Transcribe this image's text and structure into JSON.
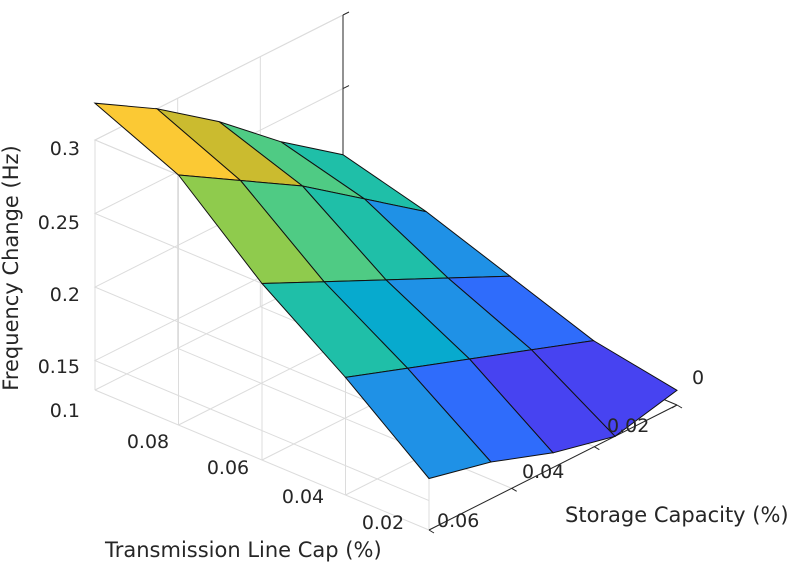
{
  "chart_data": {
    "type": "surface3d",
    "title": "",
    "xlabel": "Transmission Line Cap (%)",
    "ylabel": "Storage Capacity (%)",
    "zlabel": "Frequency Change (Hz)",
    "x_ticks": [
      "0.02",
      "0.04",
      "0.06",
      "0.08",
      "0.1"
    ],
    "y_ticks": [
      "0",
      "0.02",
      "0.04",
      "0.06"
    ],
    "z_ticks": [
      "0.15",
      "0.2",
      "0.25",
      "0.3"
    ],
    "xlim": [
      0.02,
      0.1
    ],
    "ylim": [
      0,
      0.06
    ],
    "zlim": [
      0.13,
      0.3
    ],
    "x": [
      0.1,
      0.08,
      0.06,
      0.04,
      0.02
    ],
    "y": [
      0,
      0.015,
      0.03,
      0.045,
      0.06
    ],
    "z": [
      [
        0.325,
        0.3,
        0.25,
        0.21,
        0.165
      ],
      [
        0.3,
        0.275,
        0.23,
        0.195,
        0.155
      ],
      [
        0.27,
        0.25,
        0.21,
        0.18,
        0.14
      ],
      [
        0.235,
        0.22,
        0.19,
        0.165,
        0.13
      ],
      [
        0.205,
        0.19,
        0.17,
        0.15,
        0.14
      ]
    ],
    "colormap": [
      "#3e26a8",
      "#4743f1",
      "#2f6cfb",
      "#1f91e6",
      "#07aace",
      "#1fbfa8",
      "#4fcb84",
      "#8fcb4d",
      "#cbbb2f",
      "#fbc934",
      "#f9fb15"
    ],
    "grid": true,
    "view": "azimuth ~135deg, elevation ~30deg"
  }
}
